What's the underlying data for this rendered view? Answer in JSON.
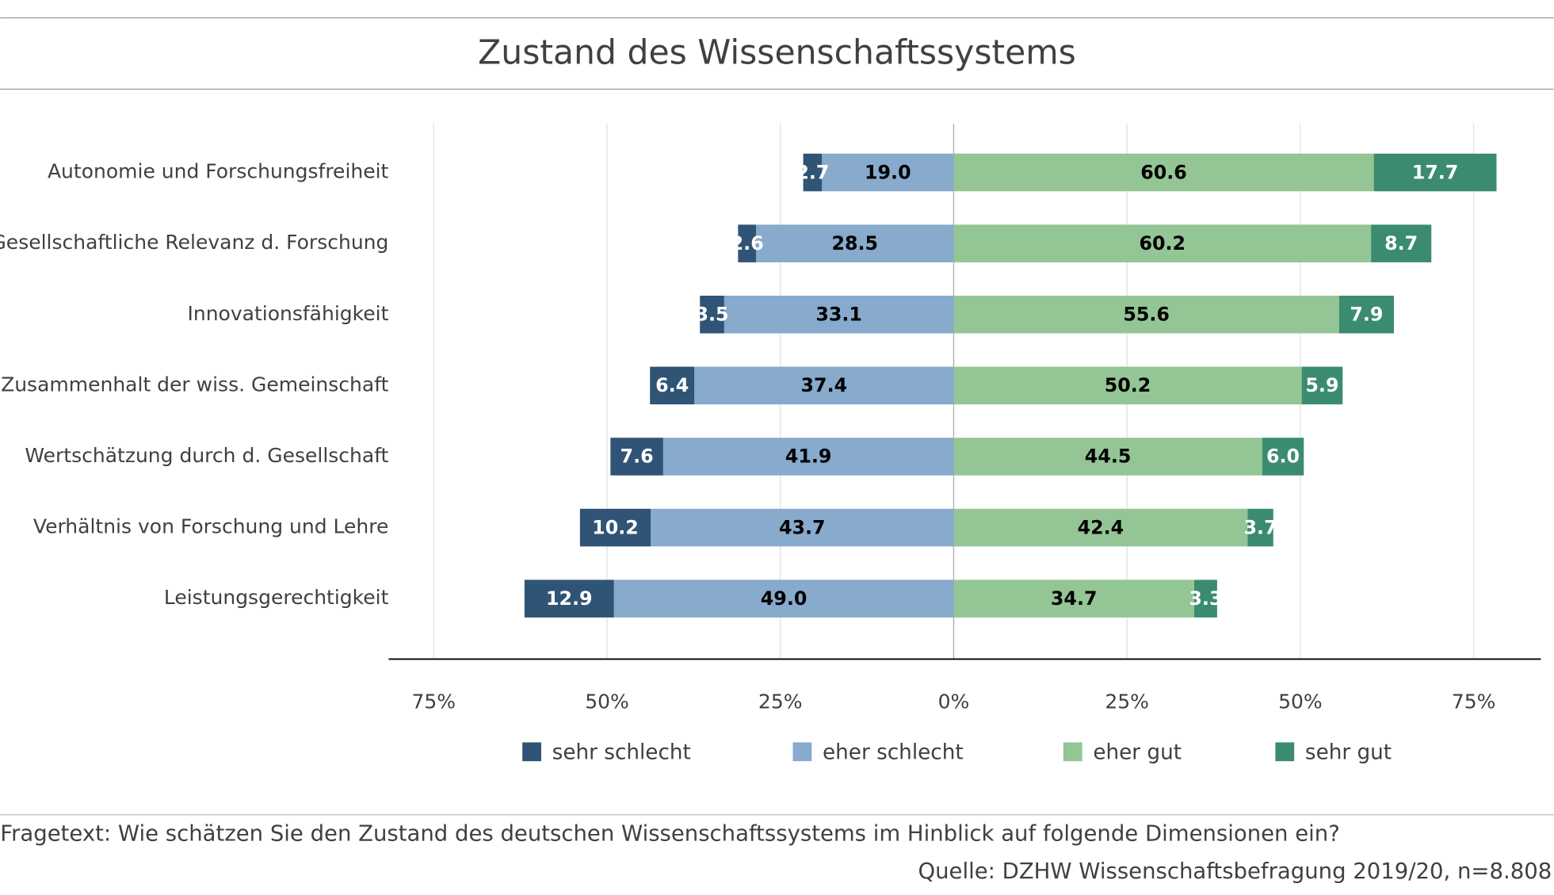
{
  "chart_data": {
    "type": "diverging_bar",
    "title": "Zustand des Wissenschaftssystems",
    "categories": [
      "Autonomie und Forschungsfreiheit",
      "Gesellschaftliche Relevanz d. Forschung",
      "Innovationsfähigkeit",
      "Zusammenhalt der wiss. Gemeinschaft",
      "Wertschätzung durch d. Gesellschaft",
      "Verhältnis von Forschung und Lehre",
      "Leistungsgerechtigkeit"
    ],
    "series": [
      {
        "name": "sehr schlecht",
        "color": "#2f5476",
        "values": [
          2.7,
          2.6,
          3.5,
          6.4,
          7.6,
          10.2,
          12.9
        ],
        "value_labels": [
          "2.7",
          "2.6",
          "3.5",
          "6.4",
          "7.6",
          "10.2",
          "12.9"
        ]
      },
      {
        "name": "eher schlecht",
        "color": "#87aacd",
        "values": [
          19,
          28.5,
          33.1,
          37.4,
          41.9,
          43.7,
          49
        ],
        "value_labels": [
          "19.0",
          "28.5",
          "33.1",
          "37.4",
          "41.9",
          "43.7",
          "49.0"
        ]
      },
      {
        "name": "eher gut",
        "color": "#93c595",
        "values": [
          60.6,
          60.2,
          55.6,
          50.2,
          44.5,
          42.4,
          34.7
        ],
        "value_labels": [
          "60.6",
          "60.2",
          "55.6",
          "50.2",
          "44.5",
          "42.4",
          "34.7"
        ]
      },
      {
        "name": "sehr gut",
        "color": "#3b8c6e",
        "values": [
          17.7,
          8.7,
          7.9,
          5.9,
          6,
          3.7,
          3.3
        ],
        "value_labels": [
          "17.7",
          "8.7",
          "7.9",
          "5.9",
          "6.0",
          "3.7",
          "3.3"
        ]
      }
    ],
    "xlim": [
      -81.5,
      84.7
    ],
    "xticks": [
      {
        "value": -75,
        "label": "75%"
      },
      {
        "value": -50,
        "label": "50%"
      },
      {
        "value": -25,
        "label": "25%"
      },
      {
        "value": 0,
        "label": "0%"
      },
      {
        "value": 25,
        "label": "25%"
      },
      {
        "value": 50,
        "label": "50%"
      },
      {
        "value": 75,
        "label": "75%"
      }
    ],
    "grid": true,
    "footnote": "Fragetext: Wie schätzen Sie den Zustand des deutschen Wissenschaftssystems im Hinblick auf folgende Dimensionen ein?",
    "source": "Quelle: DZHW Wissenschaftsbefragung 2019/20, n=8.808"
  }
}
